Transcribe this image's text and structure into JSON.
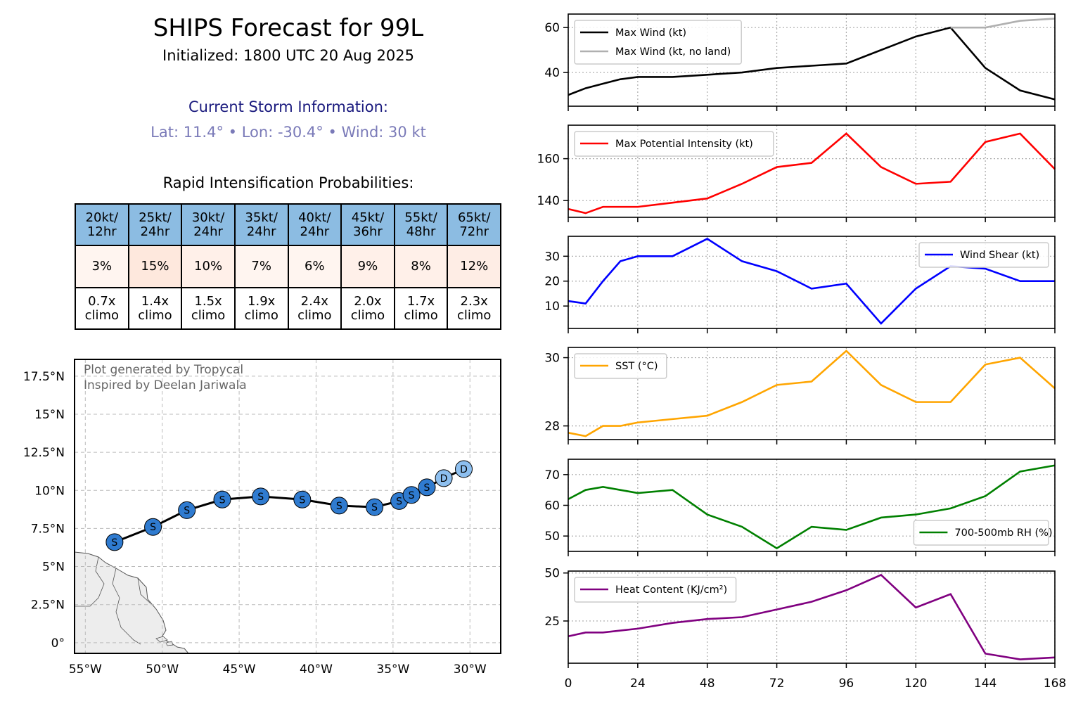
{
  "header": {
    "title": "SHIPS Forecast for 99L",
    "initialized": "Initialized: 1800 UTC 20 Aug 2025",
    "current_heading": "Current Storm Information:",
    "current_info": "Lat: 11.4° • Lon: -30.4° • Wind: 30 kt",
    "ri_heading": "Rapid Intensification Probabilities:"
  },
  "ri_table": {
    "columns": [
      "20kt/\n12hr",
      "25kt/\n24hr",
      "30kt/\n24hr",
      "35kt/\n24hr",
      "40kt/\n24hr",
      "45kt/\n36hr",
      "55kt/\n48hr",
      "65kt/\n72hr"
    ],
    "probabilities": [
      "3%",
      "15%",
      "10%",
      "7%",
      "6%",
      "9%",
      "8%",
      "12%"
    ],
    "prob_colors": [
      "#fff5f0",
      "#fee8dd",
      "#fff0e9",
      "#fff5f0",
      "#fff5f0",
      "#fff0e9",
      "#fff0e9",
      "#feede5"
    ],
    "climo": [
      "0.7x\nclimo",
      "1.4x\nclimo",
      "1.5x\nclimo",
      "1.9x\nclimo",
      "2.4x\nclimo",
      "2.0x\nclimo",
      "1.7x\nclimo",
      "2.3x\nclimo"
    ],
    "header_color": "#8cbce2"
  },
  "map": {
    "credit_line1": "Plot generated by Tropycal",
    "credit_line2": "Inspired by Deelan Jariwala",
    "lon_ticks": [
      -55,
      -50,
      -45,
      -40,
      -35,
      -30
    ],
    "lon_labels": [
      "55°W",
      "50°W",
      "45°W",
      "40°W",
      "35°W",
      "30°W"
    ],
    "lat_ticks": [
      0,
      2.5,
      5,
      7.5,
      10,
      12.5,
      15,
      17.5
    ],
    "lat_labels": [
      "0°",
      "2.5°N",
      "5°N",
      "7.5°N",
      "10°N",
      "12.5°N",
      "15°N",
      "17.5°N"
    ],
    "lon_range": [
      -55.7,
      -28.0
    ],
    "lat_range": [
      -0.7,
      18.6
    ],
    "track": [
      {
        "lon": -30.4,
        "lat": 11.4,
        "label": "D",
        "color": "#8dbfef"
      },
      {
        "lon": -31.7,
        "lat": 10.8,
        "label": "D",
        "color": "#8dbfef"
      },
      {
        "lon": -32.8,
        "lat": 10.2,
        "label": "S",
        "color": "#2f7bd0"
      },
      {
        "lon": -33.8,
        "lat": 9.7,
        "label": "S",
        "color": "#2f7bd0"
      },
      {
        "lon": -34.6,
        "lat": 9.3,
        "label": "S",
        "color": "#2f7bd0"
      },
      {
        "lon": -36.2,
        "lat": 8.9,
        "label": "S",
        "color": "#2f7bd0"
      },
      {
        "lon": -38.5,
        "lat": 9.0,
        "label": "S",
        "color": "#2f7bd0"
      },
      {
        "lon": -40.9,
        "lat": 9.4,
        "label": "S",
        "color": "#2f7bd0"
      },
      {
        "lon": -43.6,
        "lat": 9.6,
        "label": "S",
        "color": "#2f7bd0"
      },
      {
        "lon": -46.1,
        "lat": 9.4,
        "label": "S",
        "color": "#2f7bd0"
      },
      {
        "lon": -48.4,
        "lat": 8.7,
        "label": "S",
        "color": "#2f7bd0"
      },
      {
        "lon": -50.6,
        "lat": 7.6,
        "label": "S",
        "color": "#2f7bd0"
      },
      {
        "lon": -53.1,
        "lat": 6.6,
        "label": "S",
        "color": "#2f7bd0"
      }
    ]
  },
  "chart_data": [
    {
      "type": "line",
      "x_ticks": [
        0,
        24,
        48,
        72,
        96,
        120,
        144,
        168
      ],
      "xlim": [
        0,
        168
      ],
      "ylim": [
        25,
        66
      ],
      "y_ticks": [
        40,
        60
      ],
      "legend_loc": "upper-left",
      "series": [
        {
          "name": "Max Wind (kt)",
          "color": "#000000",
          "x": [
            0,
            6,
            12,
            18,
            24,
            36,
            48,
            60,
            72,
            84,
            96,
            108,
            120,
            132,
            144,
            156,
            168
          ],
          "y": [
            30,
            33,
            35,
            37,
            38,
            38,
            39,
            40,
            42,
            43,
            44,
            50,
            56,
            60,
            42,
            32,
            28
          ]
        },
        {
          "name": "Max Wind (kt, no land)",
          "color": "#b0b0b0",
          "x": [
            132,
            144,
            156,
            168
          ],
          "y": [
            60,
            60,
            63,
            64
          ]
        }
      ]
    },
    {
      "type": "line",
      "xlim": [
        0,
        168
      ],
      "ylim": [
        132,
        176
      ],
      "y_ticks": [
        140,
        160
      ],
      "legend_loc": "upper-left",
      "series": [
        {
          "name": "Max Potential Intensity (kt)",
          "color": "#ff0000",
          "x": [
            0,
            6,
            12,
            18,
            24,
            36,
            48,
            60,
            72,
            84,
            96,
            108,
            120,
            132,
            144,
            156,
            168
          ],
          "y": [
            136,
            134,
            137,
            137,
            137,
            139,
            141,
            148,
            156,
            158,
            172,
            156,
            148,
            149,
            168,
            172,
            155
          ]
        }
      ]
    },
    {
      "type": "line",
      "xlim": [
        0,
        168
      ],
      "ylim": [
        1,
        38
      ],
      "y_ticks": [
        10,
        20,
        30
      ],
      "legend_loc": "upper-right",
      "series": [
        {
          "name": "Wind Shear (kt)",
          "color": "#0000ff",
          "x": [
            0,
            6,
            12,
            18,
            24,
            36,
            48,
            60,
            72,
            84,
            96,
            108,
            120,
            132,
            144,
            156,
            168
          ],
          "y": [
            12,
            11,
            20,
            28,
            30,
            30,
            37,
            28,
            24,
            17,
            19,
            3,
            17,
            26,
            25,
            20,
            20
          ]
        }
      ]
    },
    {
      "type": "line",
      "xlim": [
        0,
        168
      ],
      "ylim": [
        27.6,
        30.3
      ],
      "y_ticks": [
        28,
        30
      ],
      "legend_loc": "upper-left",
      "series": [
        {
          "name": "SST (°C)",
          "color": "#ffa500",
          "x": [
            0,
            6,
            12,
            18,
            24,
            36,
            48,
            60,
            72,
            84,
            96,
            108,
            120,
            132,
            144,
            156,
            168
          ],
          "y": [
            27.8,
            27.7,
            28.0,
            28.0,
            28.1,
            28.2,
            28.3,
            28.7,
            29.2,
            29.3,
            30.2,
            29.2,
            28.7,
            28.7,
            29.8,
            30.0,
            29.1
          ]
        }
      ]
    },
    {
      "type": "line",
      "xlim": [
        0,
        168
      ],
      "ylim": [
        45,
        75
      ],
      "y_ticks": [
        50,
        60,
        70
      ],
      "legend_loc": "lower-right",
      "series": [
        {
          "name": "700-500mb RH (%)",
          "color": "#008000",
          "x": [
            0,
            6,
            12,
            18,
            24,
            36,
            48,
            60,
            72,
            84,
            96,
            108,
            120,
            132,
            144,
            156,
            168
          ],
          "y": [
            62,
            65,
            66,
            65,
            64,
            65,
            57,
            53,
            46,
            53,
            52,
            56,
            57,
            59,
            63,
            71,
            73
          ]
        }
      ]
    },
    {
      "type": "line",
      "xlim": [
        0,
        168
      ],
      "ylim": [
        3,
        51
      ],
      "y_ticks": [
        25,
        50
      ],
      "legend_loc": "upper-left",
      "series": [
        {
          "name": "Heat Content (KJ/cm²)",
          "color": "#800080",
          "x": [
            0,
            6,
            12,
            18,
            24,
            36,
            48,
            60,
            72,
            84,
            96,
            108,
            120,
            132,
            144,
            156,
            168
          ],
          "y": [
            17,
            19,
            19,
            20,
            21,
            24,
            26,
            27,
            31,
            35,
            41,
            49,
            32,
            39,
            8,
            5,
            6
          ]
        }
      ]
    }
  ],
  "x_tick_labels": [
    "0",
    "24",
    "48",
    "72",
    "96",
    "120",
    "144",
    "168"
  ]
}
